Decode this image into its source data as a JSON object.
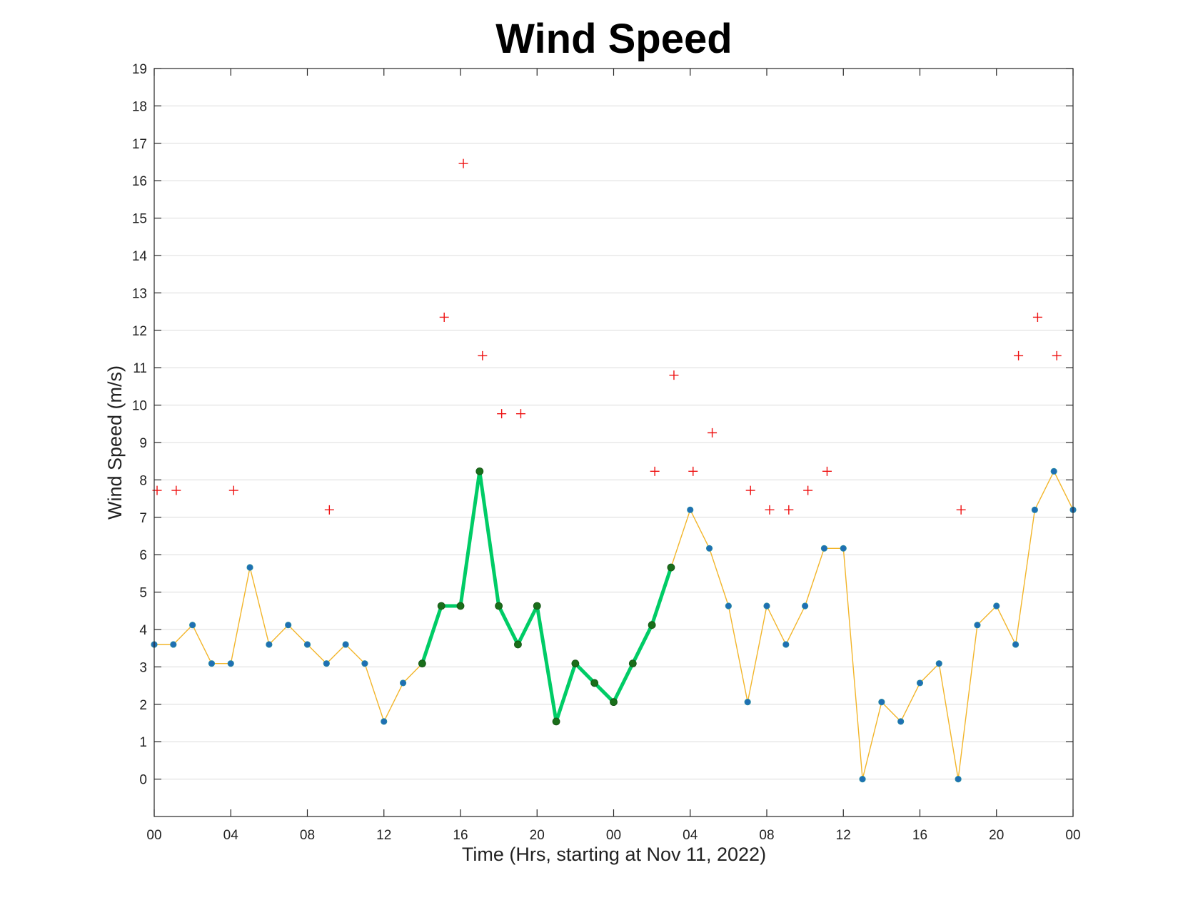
{
  "chart_data": {
    "type": "line",
    "title": "Wind Speed",
    "xlabel": "Time (Hrs, starting at Nov 11, 2022)",
    "ylabel": "Wind Speed (m/s)",
    "ylim": [
      -1,
      19
    ],
    "y_ticks": [
      "0",
      "1",
      "2",
      "3",
      "4",
      "5",
      "6",
      "7",
      "8",
      "9",
      "10",
      "11",
      "12",
      "13",
      "14",
      "15",
      "16",
      "17",
      "18",
      "19"
    ],
    "xlim": [
      0,
      48
    ],
    "x_tick_positions": [
      0,
      4,
      8,
      12,
      16,
      20,
      24,
      28,
      32,
      36,
      40,
      44,
      48
    ],
    "x_tick_labels": [
      "00",
      "04",
      "08",
      "12",
      "16",
      "20",
      "00",
      "04",
      "08",
      "12",
      "16",
      "20",
      "00"
    ],
    "grid": "horizontal",
    "colors": {
      "wind_line": "#f2b52a",
      "wind_marker": "#1f6fb4",
      "highlight_line": "#00cc66",
      "highlight_marker": "#1a6e1a",
      "gust_marker": "#ee1111"
    },
    "series": [
      {
        "role": "wind_speed",
        "style": "line+dot",
        "x": [
          0,
          1,
          2,
          3,
          4,
          5,
          6,
          7,
          8,
          9,
          10,
          11,
          12,
          13,
          14,
          15,
          16,
          17,
          18,
          19,
          20,
          21,
          22,
          23,
          24,
          25,
          26,
          27,
          28,
          29,
          30,
          31,
          32,
          33,
          34,
          35,
          36,
          37,
          38,
          39,
          40,
          41,
          42,
          43,
          44,
          45,
          46,
          47,
          48
        ],
        "y": [
          3.6,
          3.6,
          4.12,
          3.09,
          3.09,
          5.66,
          3.6,
          4.12,
          3.6,
          3.09,
          3.6,
          3.09,
          1.54,
          2.57,
          3.09,
          4.63,
          4.63,
          8.23,
          4.63,
          3.6,
          4.63,
          1.54,
          3.09,
          2.57,
          2.06,
          3.09,
          4.12,
          5.66,
          7.2,
          6.17,
          4.63,
          2.06,
          4.63,
          3.6,
          4.63,
          6.17,
          6.17,
          0,
          2.06,
          1.54,
          2.57,
          3.09,
          0,
          4.12,
          4.63,
          3.6,
          7.2,
          8.23,
          7.2
        ]
      },
      {
        "role": "highlight",
        "style": "thick-line+dot",
        "segments": [
          {
            "x": [
              14,
              15,
              16,
              17,
              18,
              19,
              20,
              21,
              22,
              23,
              24,
              25,
              26,
              27
            ],
            "y": [
              3.09,
              4.63,
              4.63,
              8.23,
              4.63,
              3.6,
              4.63,
              1.54,
              3.09,
              2.57,
              2.06,
              3.09,
              4.12,
              5.66
            ]
          }
        ]
      },
      {
        "role": "gust",
        "style": "plus-marker",
        "x": [
          0.15,
          1.15,
          4.15,
          9.15,
          15.15,
          16.15,
          17.15,
          18.15,
          19.15,
          26.15,
          27.15,
          28.15,
          29.15,
          31.15,
          32.15,
          33.15,
          34.15,
          35.15,
          42.15,
          45.15,
          46.15,
          47.15
        ],
        "y": [
          7.72,
          7.72,
          7.72,
          7.2,
          12.35,
          16.46,
          11.32,
          9.77,
          9.77,
          8.23,
          10.8,
          8.23,
          9.26,
          7.72,
          7.2,
          7.2,
          7.72,
          8.23,
          7.2,
          11.32,
          12.35,
          11.32
        ]
      }
    ]
  }
}
